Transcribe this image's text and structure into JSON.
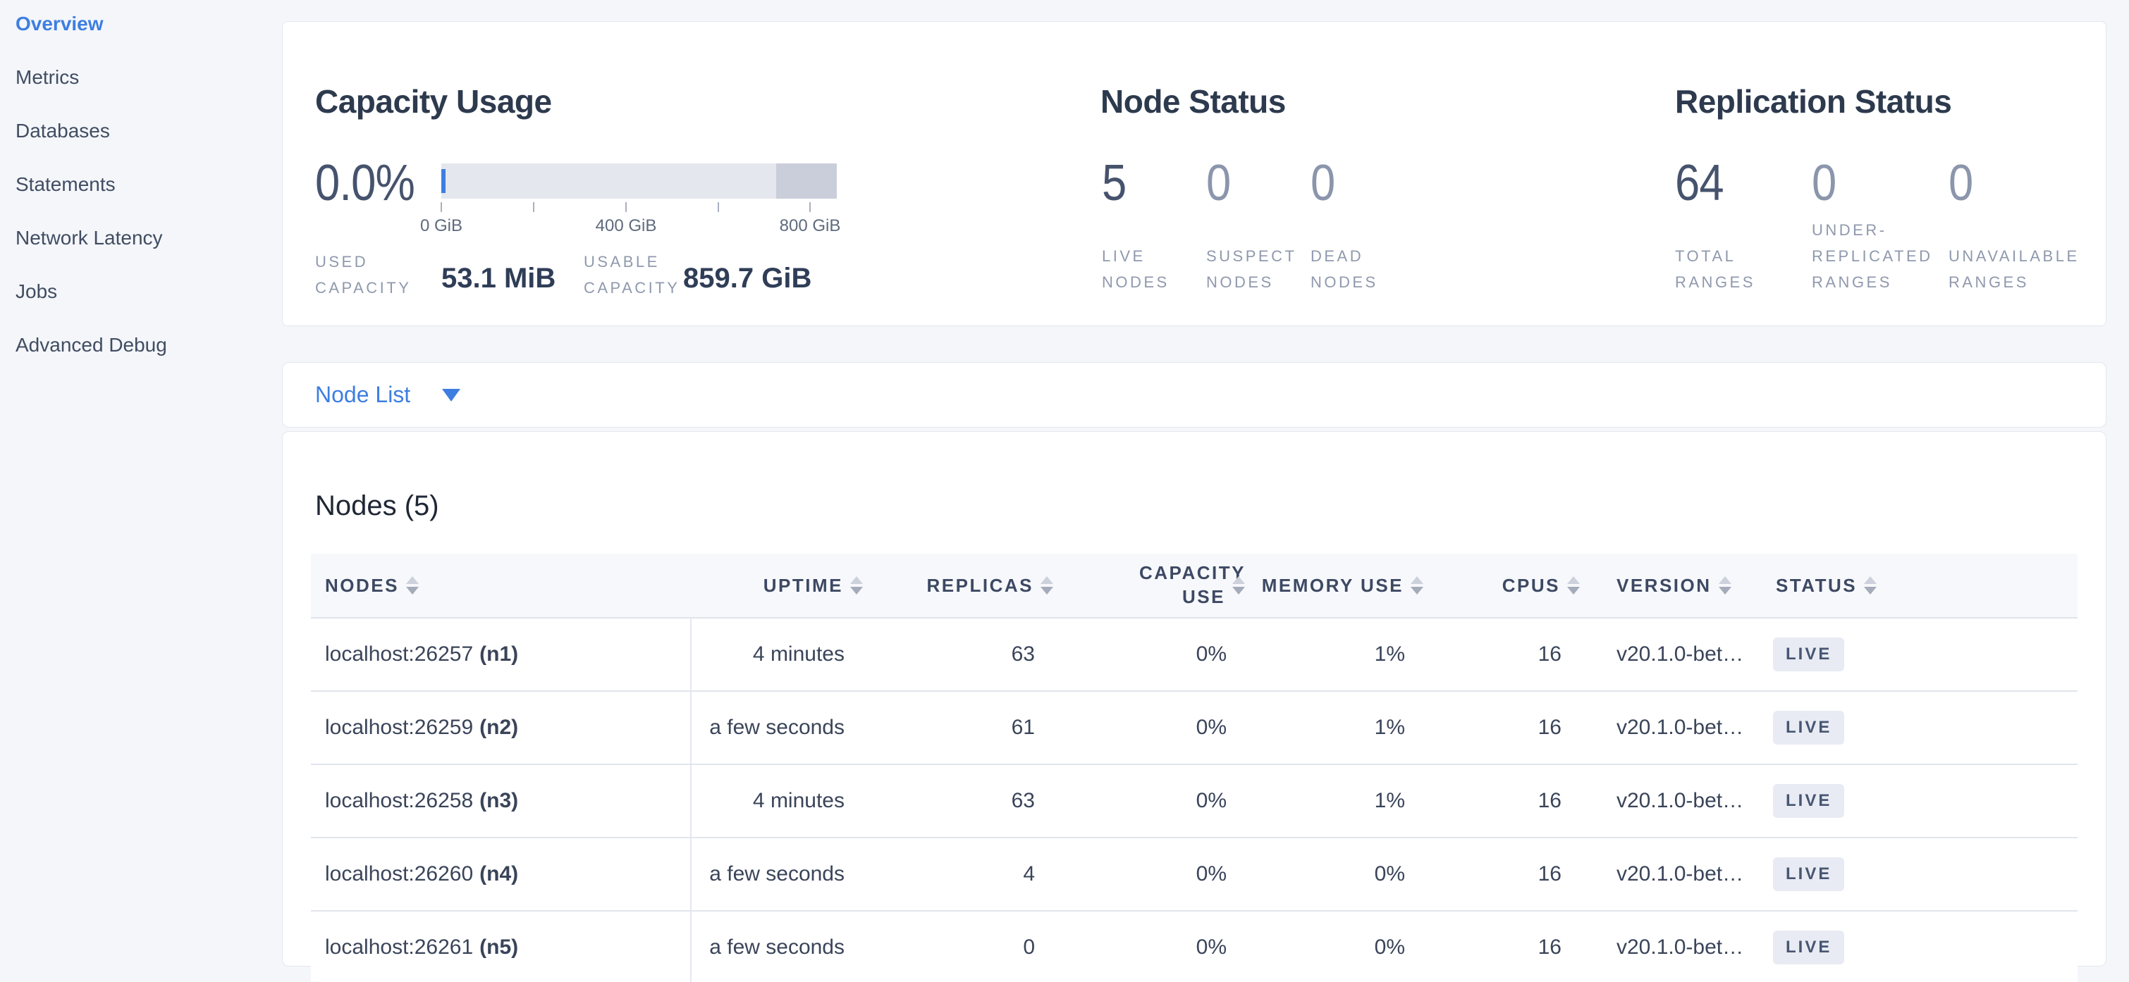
{
  "colors": {
    "accent_blue": "#3e7ee0",
    "page_background": "#f4f6fa",
    "badge_background": "#e8ebf3",
    "bar_light": "#e4e7ee",
    "bar_dark": "#c9ceda",
    "bar_used_blue": "#3e7ee0"
  },
  "sidebar": {
    "items": [
      {
        "label": "Overview",
        "active": true
      },
      {
        "label": "Metrics",
        "active": false
      },
      {
        "label": "Databases",
        "active": false
      },
      {
        "label": "Statements",
        "active": false
      },
      {
        "label": "Network Latency",
        "active": false
      },
      {
        "label": "Jobs",
        "active": false
      },
      {
        "label": "Advanced Debug",
        "active": false
      }
    ]
  },
  "capacity": {
    "title": "Capacity Usage",
    "percent": "0.0%",
    "ticks": [
      "0 GiB",
      "400 GiB",
      "800 GiB"
    ],
    "used": {
      "label": "USED CAPACITY",
      "value": "53.1 MiB"
    },
    "usable": {
      "label": "USABLE CAPACITY",
      "value": "859.7 GiB"
    }
  },
  "node_status": {
    "title": "Node Status",
    "stats": [
      {
        "value": "5",
        "label": "LIVE NODES"
      },
      {
        "value": "0",
        "label": "SUSPECT NODES"
      },
      {
        "value": "0",
        "label": "DEAD NODES"
      }
    ]
  },
  "replication": {
    "title": "Replication Status",
    "stats": [
      {
        "value": "64",
        "label": "TOTAL RANGES"
      },
      {
        "value": "0",
        "label": "UNDER-REPLICATED RANGES"
      },
      {
        "value": "0",
        "label": "UNAVAILABLE RANGES"
      }
    ]
  },
  "node_list": {
    "label": "Node List"
  },
  "nodes_table": {
    "title": "Nodes (5)",
    "columns": [
      {
        "label": "NODES"
      },
      {
        "label": "UPTIME"
      },
      {
        "label": "REPLICAS"
      },
      {
        "label": "CAPACITY USE"
      },
      {
        "label": "MEMORY USE"
      },
      {
        "label": "CPUS"
      },
      {
        "label": "VERSION"
      },
      {
        "label": "STATUS"
      }
    ],
    "rows": [
      {
        "address": "localhost:26257",
        "node_id": "(n1)",
        "uptime": "4 minutes",
        "replicas": "63",
        "capacity_use": "0%",
        "memory_use": "1%",
        "cpus": "16",
        "version": "v20.1.0-bet…",
        "status": "LIVE"
      },
      {
        "address": "localhost:26259",
        "node_id": "(n2)",
        "uptime": "a few seconds",
        "replicas": "61",
        "capacity_use": "0%",
        "memory_use": "1%",
        "cpus": "16",
        "version": "v20.1.0-bet…",
        "status": "LIVE"
      },
      {
        "address": "localhost:26258",
        "node_id": "(n3)",
        "uptime": "4 minutes",
        "replicas": "63",
        "capacity_use": "0%",
        "memory_use": "1%",
        "cpus": "16",
        "version": "v20.1.0-bet…",
        "status": "LIVE"
      },
      {
        "address": "localhost:26260",
        "node_id": "(n4)",
        "uptime": "a few seconds",
        "replicas": "4",
        "capacity_use": "0%",
        "memory_use": "0%",
        "cpus": "16",
        "version": "v20.1.0-bet…",
        "status": "LIVE"
      },
      {
        "address": "localhost:26261",
        "node_id": "(n5)",
        "uptime": "a few seconds",
        "replicas": "0",
        "capacity_use": "0%",
        "memory_use": "0%",
        "cpus": "16",
        "version": "v20.1.0-bet…",
        "status": "LIVE"
      }
    ]
  }
}
